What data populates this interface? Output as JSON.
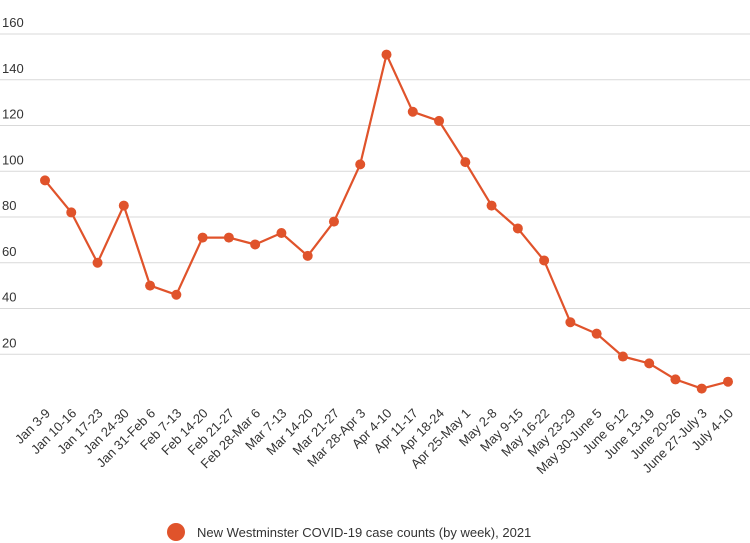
{
  "colors": {
    "series": "#e0532b",
    "grid": "#d9d9d9",
    "text": "#333333",
    "background": "#ffffff"
  },
  "chart_data": {
    "type": "line",
    "title": "",
    "xlabel": "",
    "ylabel": "",
    "ylim": [
      0,
      160
    ],
    "yticks": [
      20,
      40,
      60,
      80,
      100,
      120,
      140,
      160
    ],
    "ytick_labels": [
      "20",
      "40",
      "60",
      "80",
      "100",
      "120",
      "140",
      "160"
    ],
    "grid": true,
    "legend_position": "bottom",
    "categories": [
      "Jan 3-9",
      "Jan 10-16",
      "Jan 17-23",
      "Jan 24-30",
      "Jan 31-Feb 6",
      "Feb 7-13",
      "Feb 14-20",
      "Feb 21-27",
      "Feb 28-Mar 6",
      "Mar 7-13",
      "Mar 14-20",
      "Mar 21-27",
      "Mar 28-Apr 3",
      "Apr 4-10",
      "Apr 11-17",
      "Apr 18-24",
      "Apr 25-May 1",
      "May 2-8",
      "May 9-15",
      "May 16-22",
      "May 23-29",
      "May 30-June 5",
      "June 6-12",
      "June 13-19",
      "June 20-26",
      "June 27-July 3",
      "July 4-10"
    ],
    "series": [
      {
        "name": "New Westminster COVID-19 case counts (by week), 2021",
        "values": [
          96,
          82,
          60,
          85,
          50,
          46,
          71,
          71,
          68,
          73,
          63,
          78,
          103,
          151,
          126,
          122,
          104,
          85,
          75,
          61,
          34,
          29,
          19,
          16,
          9,
          5,
          8
        ]
      }
    ]
  }
}
